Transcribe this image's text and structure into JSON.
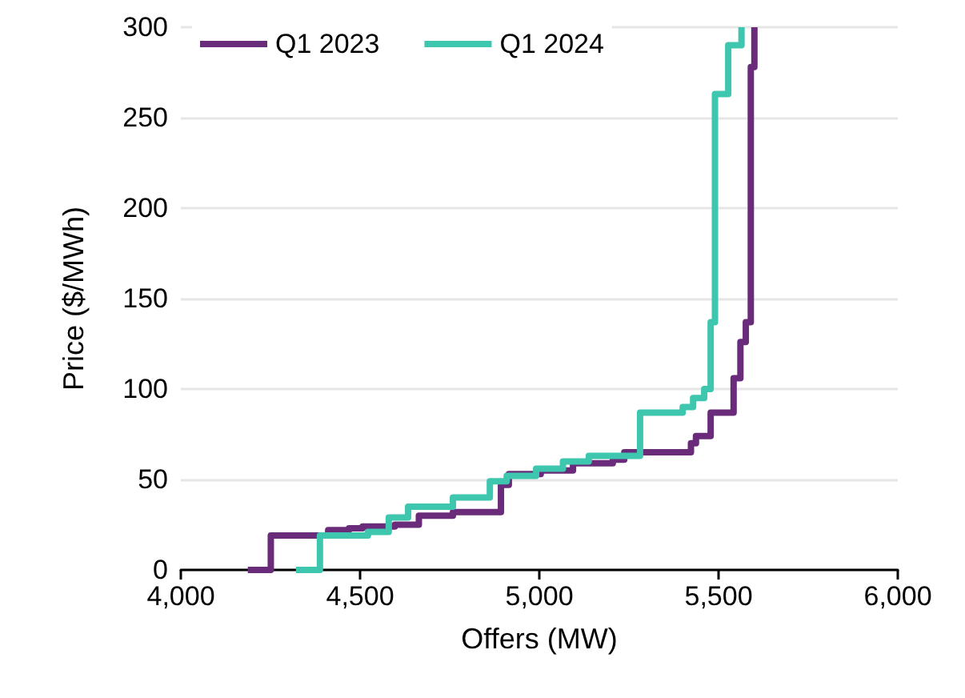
{
  "chart_data": {
    "type": "step",
    "xlabel": "Offers (MW)",
    "ylabel": "Price ($/MWh)",
    "series": [
      {
        "name": "Q1 2023",
        "color": "#6a2c7a",
        "x": [
          4187,
          4251,
          4411,
          4469,
          4507,
          4597,
          4664,
          4759,
          4893,
          4915,
          5004,
          5094,
          5205,
          5237,
          5423,
          5437,
          5478,
          5542,
          5561,
          5576,
          5590,
          5600
        ],
        "values": [
          0,
          19,
          22,
          23,
          24,
          25,
          30,
          32,
          47,
          53,
          55,
          59,
          61,
          65,
          70,
          74,
          87,
          106,
          126,
          137,
          278,
          300
        ]
      },
      {
        "name": "Q1 2024",
        "color": "#3fc6ae",
        "x": [
          4321,
          4388,
          4522,
          4580,
          4634,
          4759,
          4862,
          4909,
          4991,
          5066,
          5138,
          5281,
          5400,
          5429,
          5460,
          5478,
          5490,
          5527,
          5564
        ],
        "values": [
          0,
          19,
          21,
          29,
          35,
          40,
          49,
          52,
          56,
          60,
          63,
          87,
          90,
          95,
          100,
          137,
          263,
          290,
          300
        ]
      }
    ],
    "xlim": [
      4000,
      6000
    ],
    "xticks": [
      {
        "value": 4000,
        "label": "4,000"
      },
      {
        "value": 4500,
        "label": "4,500"
      },
      {
        "value": 5000,
        "label": "5,000"
      },
      {
        "value": 5500,
        "label": "5,500"
      },
      {
        "value": 6000,
        "label": "6,000"
      }
    ],
    "ylim": [
      0,
      300
    ],
    "yticks": [
      0,
      50,
      100,
      150,
      200,
      250,
      300
    ],
    "grid": "y",
    "legend": "top left",
    "marker": "none",
    "line_style": "solid"
  }
}
